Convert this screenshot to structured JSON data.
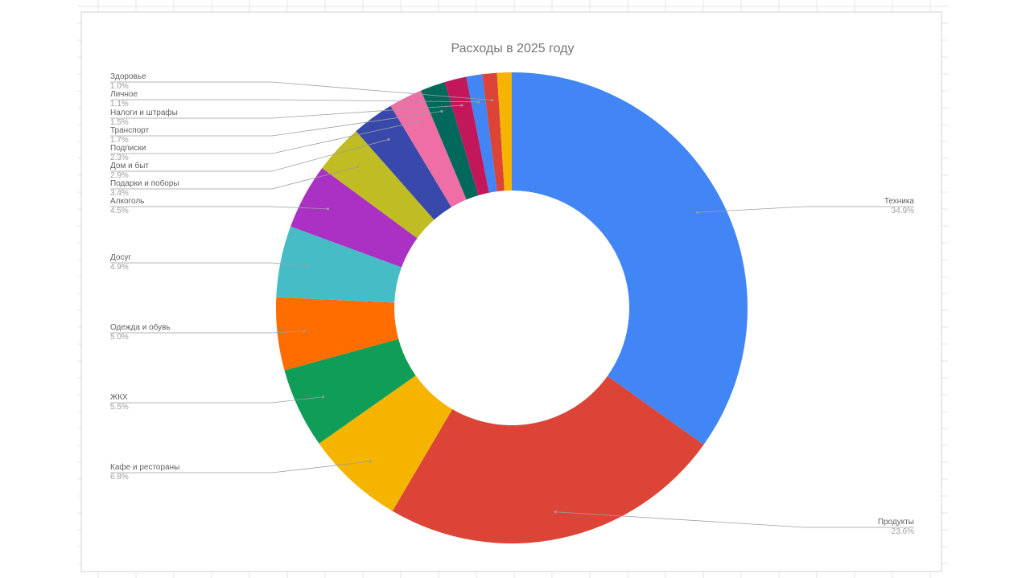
{
  "chart_data": {
    "type": "pie",
    "donut": true,
    "title": "Расходы в 2025 году",
    "legend": "none",
    "slices": [
      {
        "label": "Техника",
        "value": 34.9,
        "pct_text": "34.9%",
        "color": "#4285f4"
      },
      {
        "label": "Продукты",
        "value": 23.6,
        "pct_text": "23.6%",
        "color": "#db4437"
      },
      {
        "label": "Кафе и рестораны",
        "value": 6.8,
        "pct_text": "6.8%",
        "color": "#f4b400"
      },
      {
        "label": "ЖКХ",
        "value": 5.5,
        "pct_text": "5.5%",
        "color": "#0f9d58"
      },
      {
        "label": "Одежда и обувь",
        "value": 5.0,
        "pct_text": "5.0%",
        "color": "#ff6d00"
      },
      {
        "label": "Досуг",
        "value": 4.9,
        "pct_text": "4.9%",
        "color": "#46bdc6"
      },
      {
        "label": "Алкоголь",
        "value": 4.5,
        "pct_text": "4.5%",
        "color": "#ab30c4"
      },
      {
        "label": "Подарки и поборы",
        "value": 3.4,
        "pct_text": "3.4%",
        "color": "#c0bc23"
      },
      {
        "label": "Дом и быт",
        "value": 2.9,
        "pct_text": "2.9%",
        "color": "#3949ab"
      },
      {
        "label": "Подписки",
        "value": 2.3,
        "pct_text": "2.3%",
        "color": "#f06ea6"
      },
      {
        "label": "Транспорт",
        "value": 1.7,
        "pct_text": "1.7%",
        "color": "#00695c"
      },
      {
        "label": "Налоги и штрафы",
        "value": 1.5,
        "pct_text": "1.5%",
        "color": "#c2185b"
      },
      {
        "label": "Личное",
        "value": 1.1,
        "pct_text": "1.1%",
        "color": "#4285f4"
      },
      {
        "label": "Здоровье",
        "value": 1.0,
        "pct_text": "1.0%",
        "color": "#db4437"
      },
      {
        "label": "",
        "value": 1.0,
        "pct_text": "",
        "color": "#f4b400"
      }
    ]
  }
}
